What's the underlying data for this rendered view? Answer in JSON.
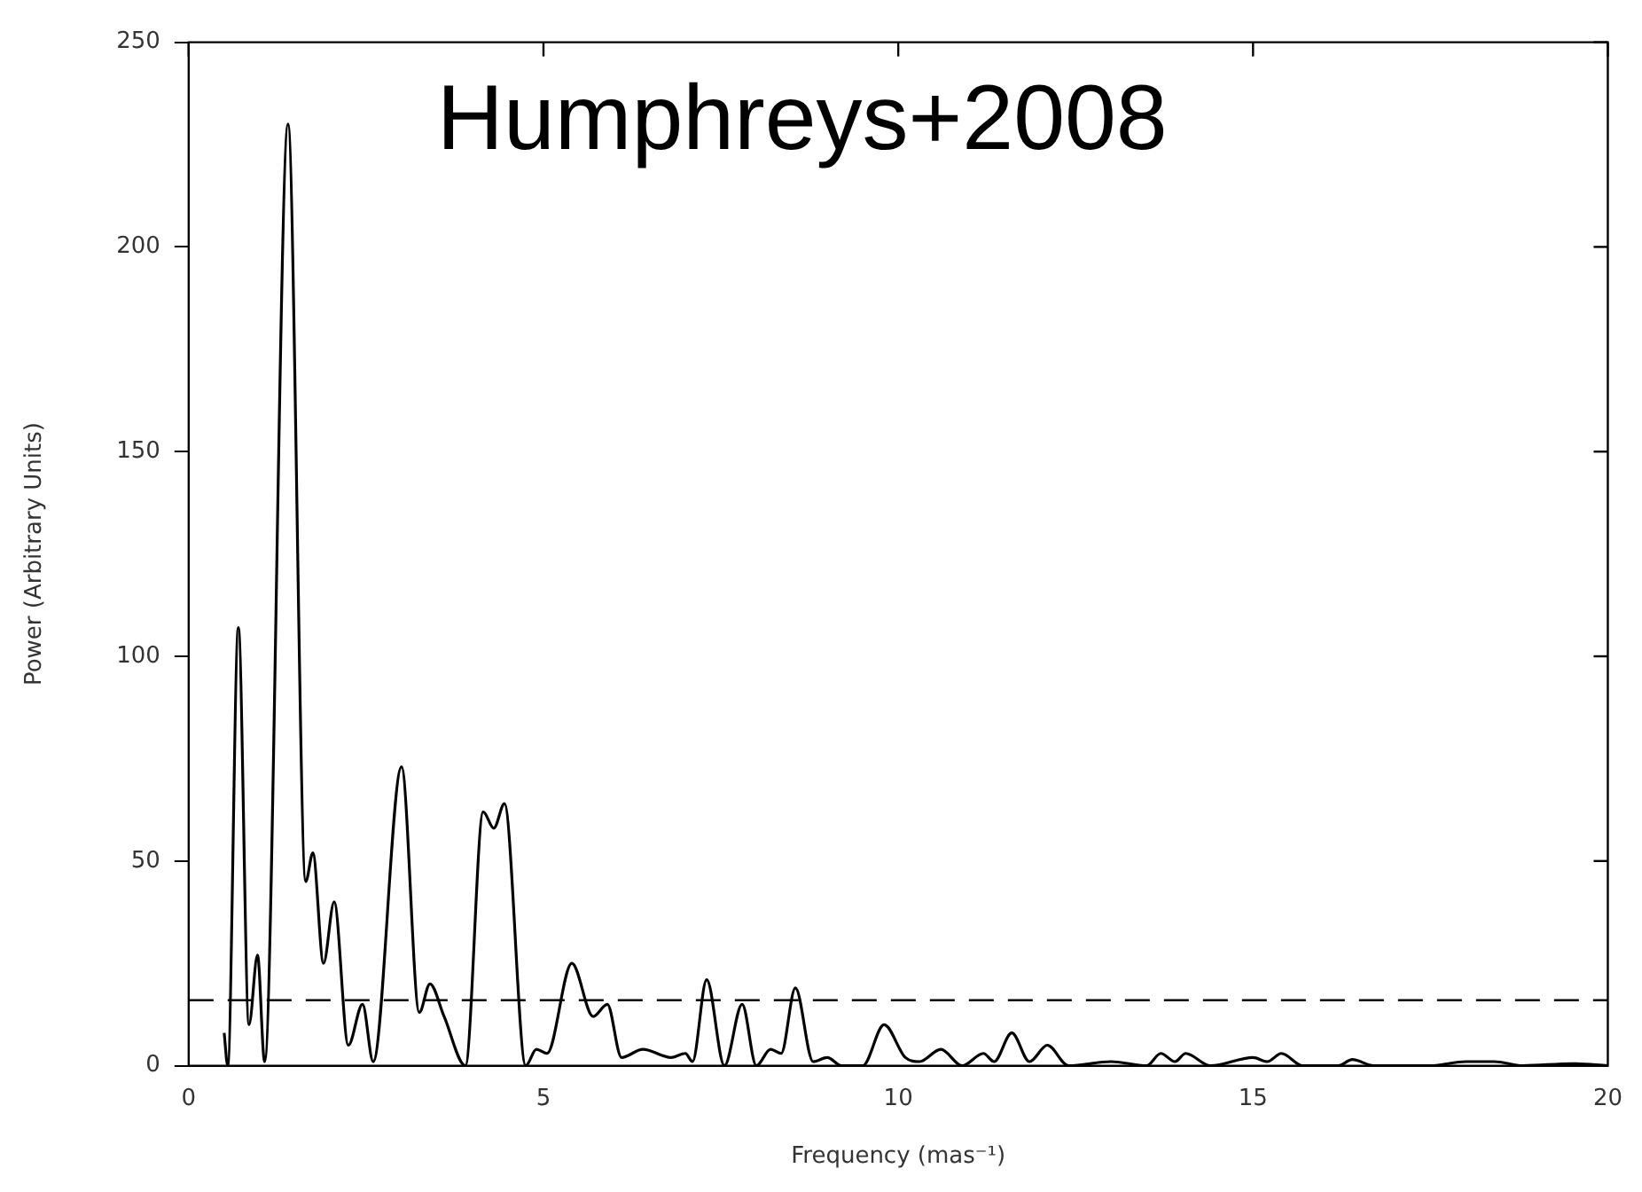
{
  "chart_data": {
    "type": "line",
    "xlabel": "Frequency (mas⁻¹)",
    "ylabel": "Power (Arbitrary Units)",
    "annotations": [
      "Humphreys+2008"
    ],
    "series": [
      {
        "color": "#000000",
        "x": [
          0.5,
          0.55,
          0.7,
          0.85,
          0.97,
          1.07,
          1.4,
          1.65,
          1.75,
          1.9,
          2.05,
          2.25,
          2.45,
          2.6,
          3.0,
          3.25,
          3.4,
          3.6,
          3.9,
          4.15,
          4.3,
          4.45,
          4.75,
          4.9,
          5.05,
          5.4,
          5.7,
          5.9,
          6.1,
          6.4,
          6.8,
          7.0,
          7.1,
          7.3,
          7.55,
          7.8,
          8.0,
          8.2,
          8.35,
          8.55,
          8.8,
          9.0,
          9.2,
          9.5,
          9.8,
          10.1,
          10.3,
          10.6,
          10.9,
          11.2,
          11.35,
          11.6,
          11.85,
          12.1,
          12.4,
          13.0,
          13.5,
          13.7,
          13.9,
          14.05,
          14.4,
          15.0,
          15.2,
          15.4,
          15.7,
          16.2,
          16.4,
          16.7,
          17.5,
          18.0,
          18.4,
          18.8,
          19.5,
          20
        ],
        "values": [
          8,
          0,
          107,
          10,
          27,
          1,
          230,
          45,
          52,
          25,
          40,
          5,
          15,
          1,
          73,
          13,
          20,
          12,
          0,
          62,
          58,
          64,
          0,
          4,
          3,
          25,
          12,
          15,
          2,
          4,
          2,
          3,
          1,
          21,
          0,
          15,
          0,
          4,
          3,
          19,
          1,
          2,
          0,
          0,
          10,
          2,
          1,
          4,
          0,
          3,
          1,
          8,
          1,
          5,
          0,
          1,
          0,
          3,
          1,
          3,
          0,
          2,
          1,
          3,
          0,
          0,
          1.5,
          0,
          0,
          1,
          1,
          0,
          0.5,
          0
        ]
      }
    ],
    "xlim": [
      0,
      20
    ],
    "xticks": [
      0,
      5,
      10,
      15,
      20
    ],
    "ylim": [
      0,
      250
    ],
    "yticks": [
      0,
      50,
      100,
      150,
      200,
      250
    ],
    "grid": false,
    "legend": false,
    "marker": "none",
    "line_style": "solid",
    "ref_lines": [
      {
        "axis": "y",
        "value": 16,
        "line_style": "dashed",
        "color": "#000000"
      }
    ]
  }
}
